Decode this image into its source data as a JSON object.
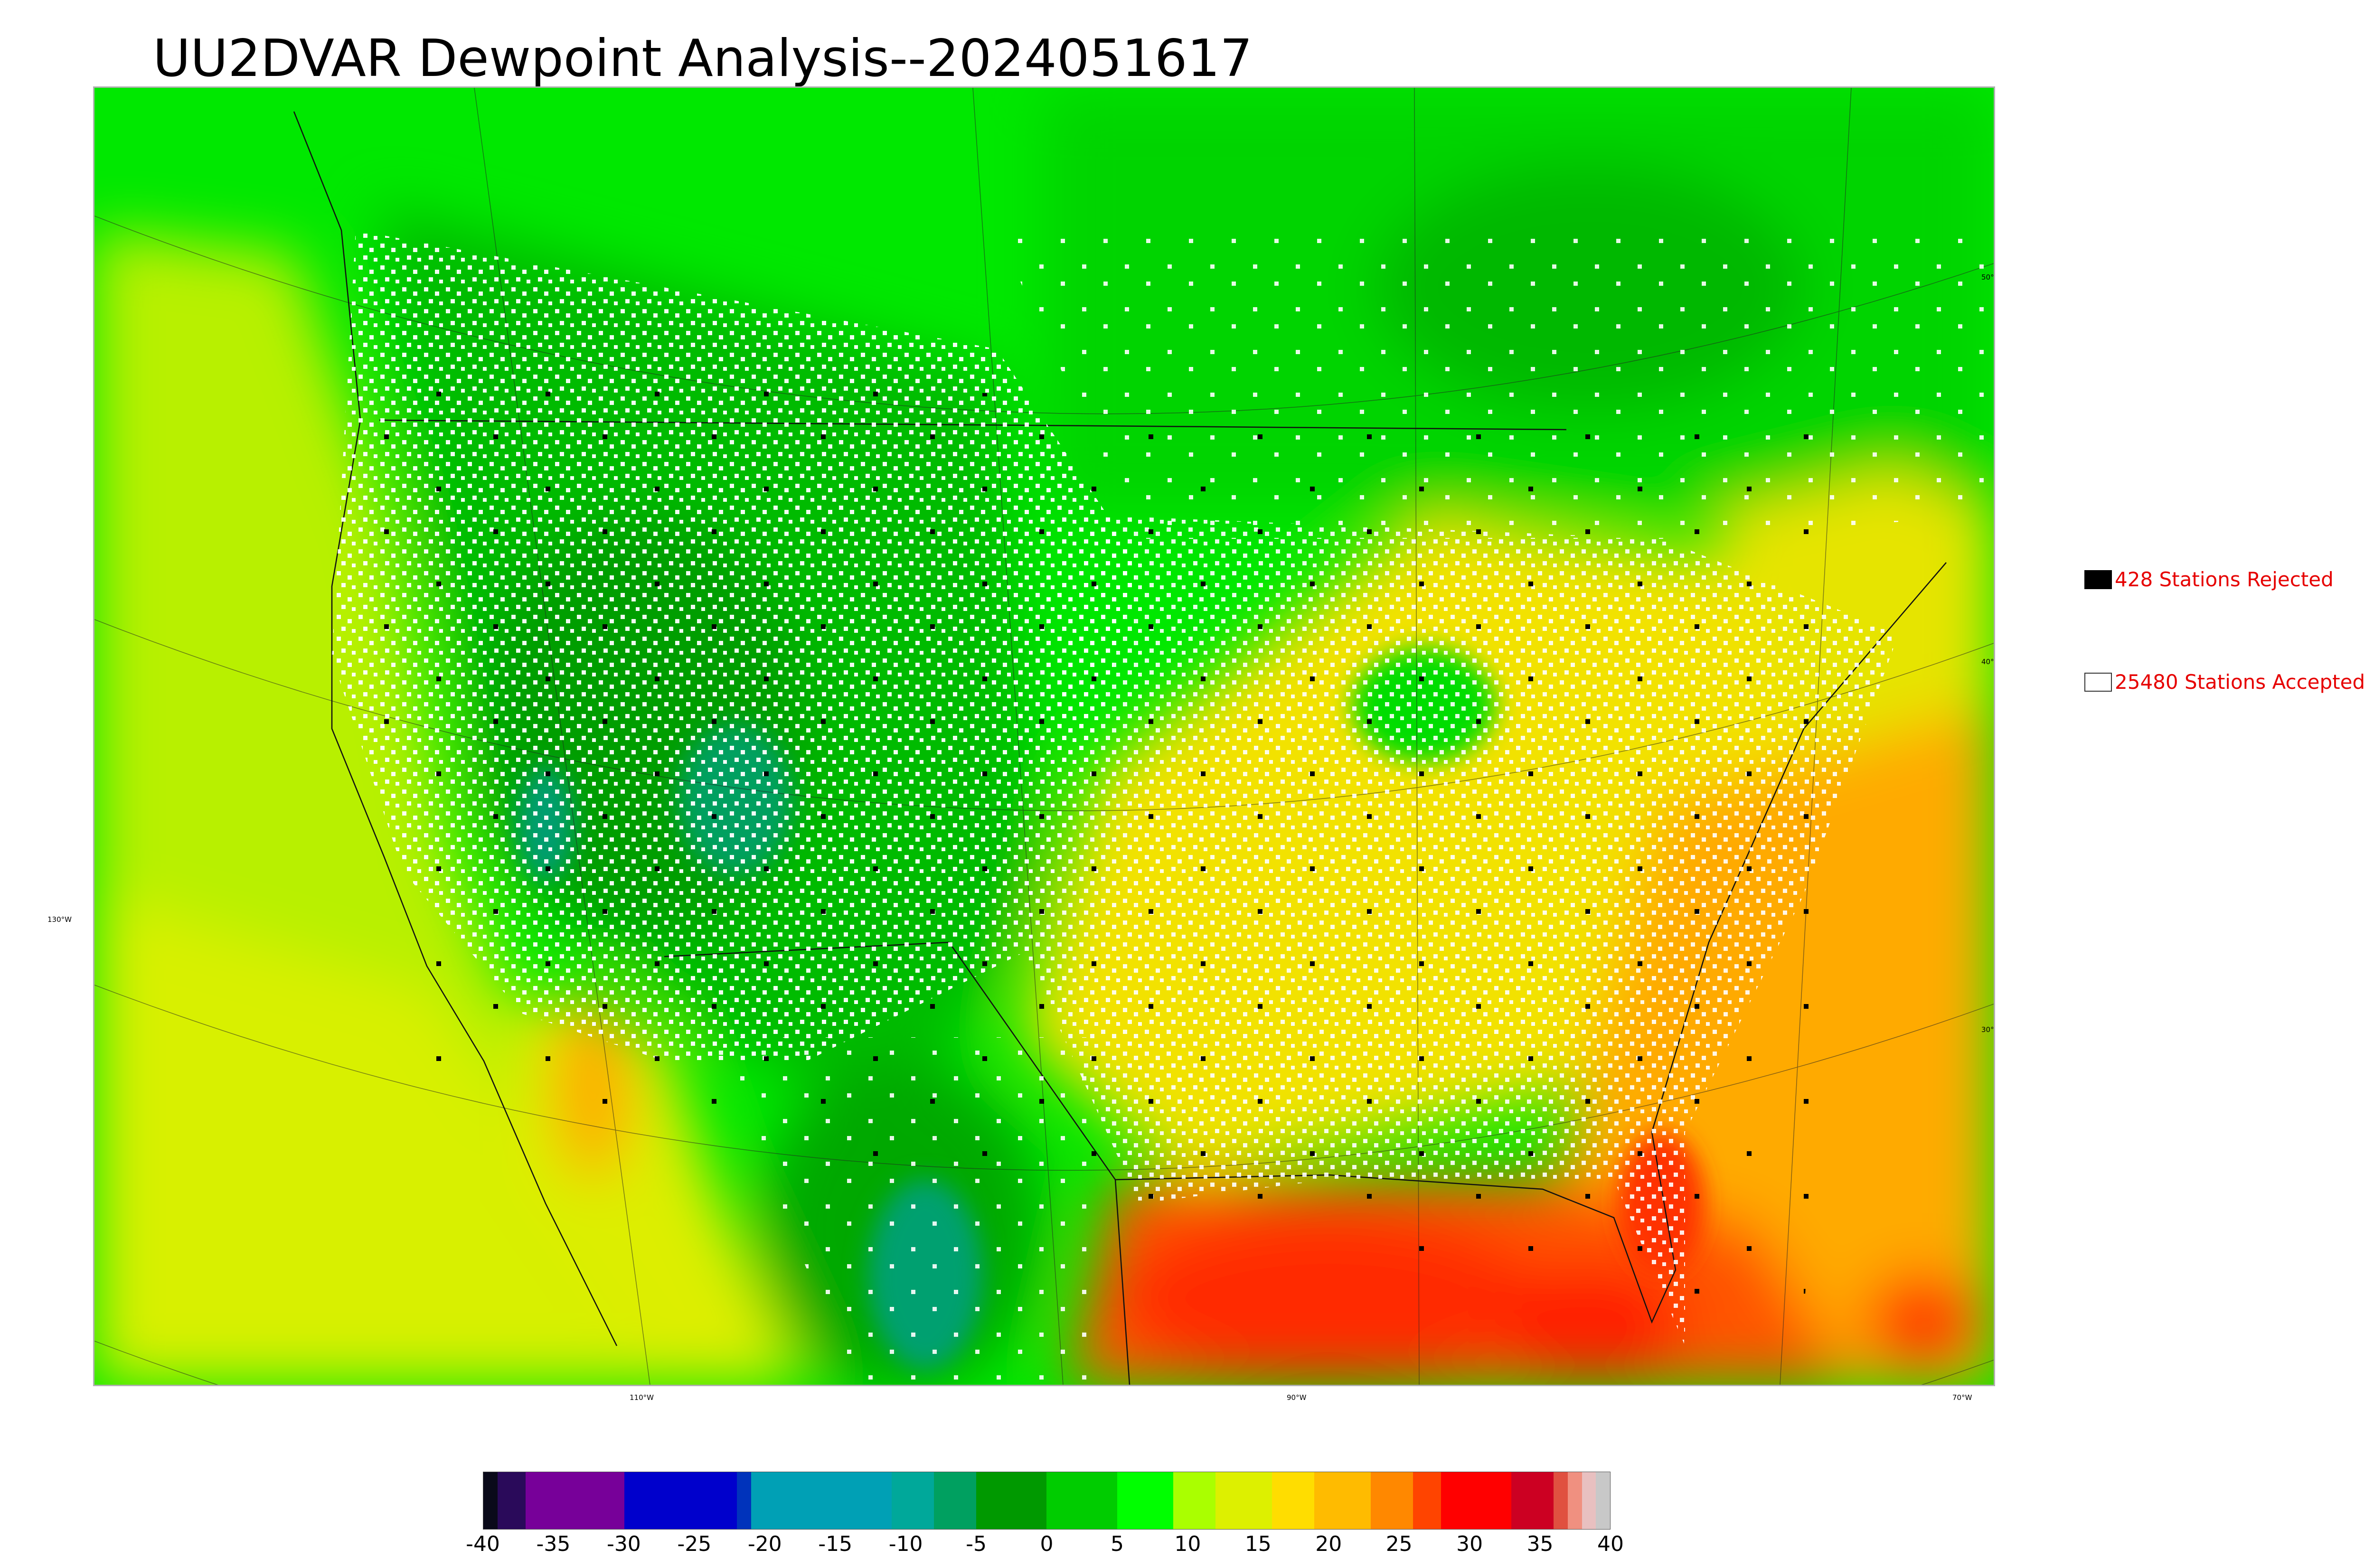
{
  "title": "UU2DVAR Dewpoint Analysis--2024051617",
  "map": {
    "lat_labels": [
      "50°N",
      "40°N",
      "30°N"
    ],
    "lon_labels": [
      "130°W",
      "110°W",
      "90°W",
      "70°W"
    ]
  },
  "legend": {
    "rejected": {
      "label": "428 Stations Rejected",
      "color": "#000000"
    },
    "accepted": {
      "label": "25480 Stations Accepted",
      "color": "#ffffff"
    },
    "text_color": "#e60000"
  },
  "colorbar": {
    "ticks": [
      "-40",
      "-35",
      "-30",
      "-25",
      "-20",
      "-15",
      "-10",
      "-5",
      "0",
      "5",
      "10",
      "15",
      "20",
      "25",
      "30",
      "35",
      "40"
    ],
    "range": [
      -40,
      40
    ],
    "segments": [
      {
        "from": -40,
        "to": -39,
        "color": "#0a0a1a"
      },
      {
        "from": -39,
        "to": -37,
        "color": "#2a0a5a"
      },
      {
        "from": -37,
        "to": -30,
        "color": "#770099"
      },
      {
        "from": -30,
        "to": -22,
        "color": "#0000cc"
      },
      {
        "from": -22,
        "to": -21,
        "color": "#0033bb"
      },
      {
        "from": -21,
        "to": -11,
        "color": "#00a0b5"
      },
      {
        "from": -11,
        "to": -8,
        "color": "#00a89a"
      },
      {
        "from": -8,
        "to": -5,
        "color": "#00a060"
      },
      {
        "from": -5,
        "to": 0,
        "color": "#009900"
      },
      {
        "from": 0,
        "to": 5,
        "color": "#00cc00"
      },
      {
        "from": 5,
        "to": 9,
        "color": "#00ff00"
      },
      {
        "from": 9,
        "to": 12,
        "color": "#aaff00"
      },
      {
        "from": 12,
        "to": 16,
        "color": "#ddf000"
      },
      {
        "from": 16,
        "to": 19,
        "color": "#ffdd00"
      },
      {
        "from": 19,
        "to": 23,
        "color": "#ffbb00"
      },
      {
        "from": 23,
        "to": 26,
        "color": "#ff8800"
      },
      {
        "from": 26,
        "to": 28,
        "color": "#ff4400"
      },
      {
        "from": 28,
        "to": 33,
        "color": "#ff0000"
      },
      {
        "from": 33,
        "to": 36,
        "color": "#cc0022"
      },
      {
        "from": 36,
        "to": 37,
        "color": "#e05040"
      },
      {
        "from": 37,
        "to": 38,
        "color": "#f09080"
      },
      {
        "from": 38,
        "to": 39,
        "color": "#e8c0c0"
      },
      {
        "from": 39,
        "to": 40,
        "color": "#c8c8c8"
      }
    ]
  }
}
